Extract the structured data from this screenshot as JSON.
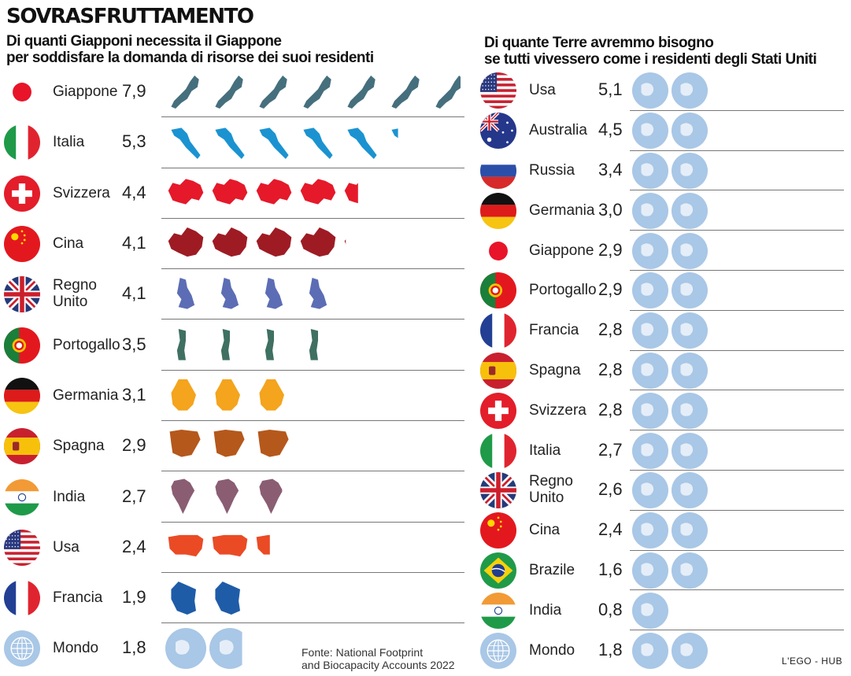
{
  "title": "SOVRASFRUTTAMENTO",
  "left_subtitle_1": "Di quanti Giapponi necessita il Giappone",
  "left_subtitle_2": "per soddisfare la domanda di risorse dei suoi residenti",
  "right_subtitle_1": "Di quante Terre avremmo bisogno",
  "right_subtitle_2": "se tutti vivessero come i residenti degli Stati Uniti",
  "source_1": "Fonte: National Footprint",
  "source_2": "and Biocapacity Accounts 2022",
  "credit": "L'EGO - HUB",
  "chart_data": [
    {
      "type": "bar",
      "title": "Di quanti Giapponi necessita il Giappone per soddisfare la domanda di risorse dei suoi residenti",
      "categories": [
        "Giappone",
        "Italia",
        "Svizzera",
        "Cina",
        "Regno Unito",
        "Portogallo",
        "Germania",
        "Spagna",
        "India",
        "Usa",
        "Francia",
        "Mondo"
      ],
      "labels": [
        "7,9",
        "5,3",
        "4,4",
        "4,1",
        "4,1",
        "3,5",
        "3,1",
        "2,9",
        "2,7",
        "2,4",
        "1,9",
        "1,8"
      ],
      "values": [
        7.9,
        5.3,
        4.4,
        4.1,
        4.1,
        3.5,
        3.1,
        2.9,
        2.7,
        2.4,
        1.9,
        1.8
      ],
      "icon_colors": [
        "#466f7d",
        "#1b93d1",
        "#e5192a",
        "#9e1b24",
        "#5c6db5",
        "#3f7062",
        "#f4a41d",
        "#b5581c",
        "#8a5d73",
        "#ea4b25",
        "#1f5ca8",
        "#a9c7e6"
      ],
      "flags": [
        "japan",
        "italy",
        "switzerland",
        "china",
        "uk",
        "portugal",
        "germany",
        "spain",
        "india",
        "usa",
        "france",
        "world"
      ]
    },
    {
      "type": "bar",
      "title": "Di quante Terre avremmo bisogno se tutti vivessero come i residenti degli Stati Uniti",
      "categories": [
        "Usa",
        "Australia",
        "Russia",
        "Germania",
        "Giappone",
        "Portogallo",
        "Francia",
        "Spagna",
        "Svizzera",
        "Italia",
        "Regno Unito",
        "Cina",
        "Brazile",
        "India",
        "Mondo"
      ],
      "labels": [
        "5,1",
        "4,5",
        "3,4",
        "3,0",
        "2,9",
        "2,9",
        "2,8",
        "2,8",
        "2,8",
        "2,7",
        "2,6",
        "2,4",
        "1,6",
        "0,8",
        "1,8"
      ],
      "values": [
        5.1,
        4.5,
        3.4,
        3.0,
        2.9,
        2.9,
        2.8,
        2.8,
        2.8,
        2.7,
        2.6,
        2.4,
        1.6,
        0.8,
        1.8
      ],
      "icon_color": "#a9c7e6",
      "flags": [
        "usa",
        "australia",
        "russia",
        "germany",
        "japan",
        "portugal",
        "france",
        "spain",
        "switzerland",
        "italy",
        "uk",
        "china",
        "brazil",
        "india",
        "world"
      ]
    }
  ]
}
